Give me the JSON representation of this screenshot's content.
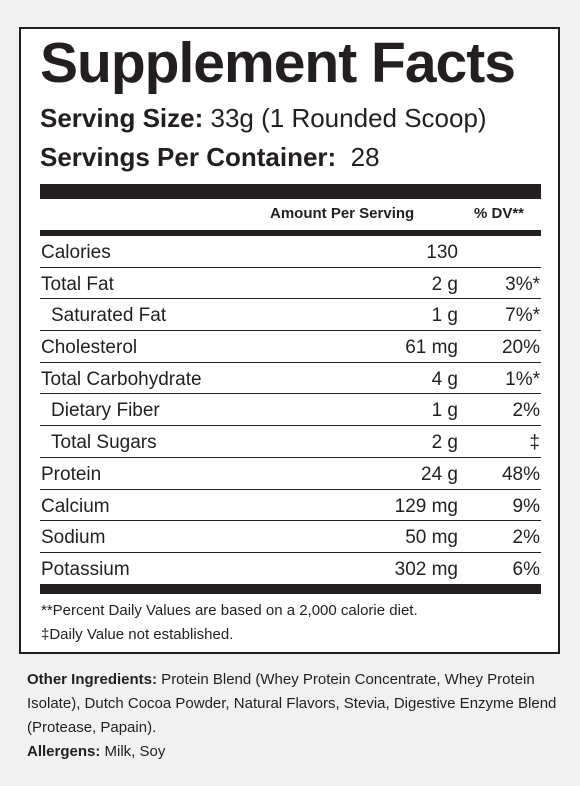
{
  "title": "Supplement Facts",
  "serving_size": {
    "label": "Serving Size:",
    "value": " 33g (1 Rounded Scoop)"
  },
  "servings_per_container": {
    "label": "Servings Per Container:",
    "value": "  28"
  },
  "columns": {
    "amount": "Amount Per Serving",
    "dv": "% DV**"
  },
  "nutrients": [
    {
      "name": "Calories",
      "amount": "130",
      "dv": ""
    },
    {
      "name": "Total Fat",
      "amount": "2 g",
      "dv": "3%*"
    },
    {
      "name": "Saturated Fat",
      "amount": "1 g",
      "dv": "7%*"
    },
    {
      "name": "Cholesterol",
      "amount": "61 mg",
      "dv": "20%"
    },
    {
      "name": "Total Carbohydrate",
      "amount": "4 g",
      "dv": "1%*"
    },
    {
      "name": "Dietary Fiber",
      "amount": "1 g",
      "dv": "2%"
    },
    {
      "name": "Total Sugars",
      "amount": "2 g",
      "dv": "‡"
    },
    {
      "name": "Protein",
      "amount": "24 g",
      "dv": "48%"
    },
    {
      "name": "Calcium",
      "amount": "129 mg",
      "dv": "9%"
    },
    {
      "name": "Sodium",
      "amount": "50 mg",
      "dv": "2%"
    },
    {
      "name": "Potassium",
      "amount": "302 mg",
      "dv": "6%"
    }
  ],
  "footnotes": [
    "**Percent Daily Values are based on a 2,000 calorie diet.",
    "‡Daily Value not established."
  ],
  "other_ingredients": {
    "label": "Other Ingredients:",
    "text": " Protein Blend (Whey Protein Concentrate, Whey Protein Isolate), Dutch Cocoa Powder, Natural Flavors, Stevia, Digestive Enzyme Blend (Protease, Papain)."
  },
  "allergens": {
    "label": "Allergens:",
    "text": " Milk, Soy"
  }
}
